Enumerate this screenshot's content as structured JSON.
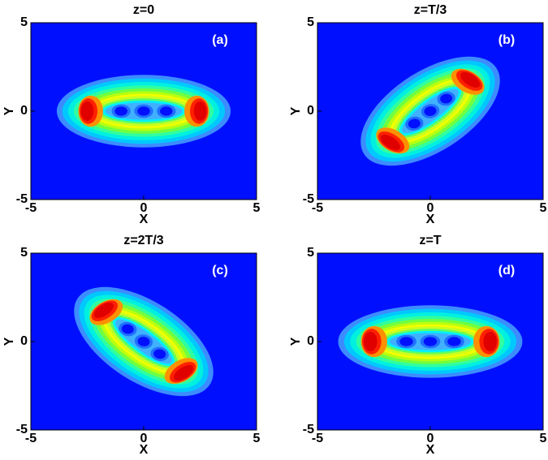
{
  "chart_data": [
    {
      "type": "contour",
      "title": "z=0",
      "panel_label": "(a)",
      "x_label": "X",
      "y_label": "Y",
      "xlim": [
        -5,
        5
      ],
      "ylim": [
        -5,
        5
      ],
      "xticks": [
        -5,
        0,
        5
      ],
      "yticks": [
        -5,
        0,
        5
      ]
    },
    {
      "type": "contour",
      "title": "z=T/3",
      "panel_label": "(b)",
      "x_label": "X",
      "y_label": "Y",
      "xlim": [
        -5,
        5
      ],
      "ylim": [
        -5,
        5
      ],
      "xticks": [
        -5,
        0,
        5
      ],
      "yticks": [
        -5,
        0,
        5
      ]
    },
    {
      "type": "contour",
      "title": "z=2T/3",
      "panel_label": "(c)",
      "x_label": "X",
      "y_label": "Y",
      "xlim": [
        -5,
        5
      ],
      "ylim": [
        -5,
        5
      ],
      "xticks": [
        -5,
        0,
        5
      ],
      "yticks": [
        -5,
        0,
        5
      ]
    },
    {
      "type": "contour",
      "title": "z=T",
      "panel_label": "(d)",
      "x_label": "X",
      "y_label": "Y",
      "xlim": [
        -5,
        5
      ],
      "ylim": [
        -5,
        5
      ],
      "xticks": [
        -5,
        0,
        5
      ],
      "yticks": [
        -5,
        0,
        5
      ]
    }
  ]
}
